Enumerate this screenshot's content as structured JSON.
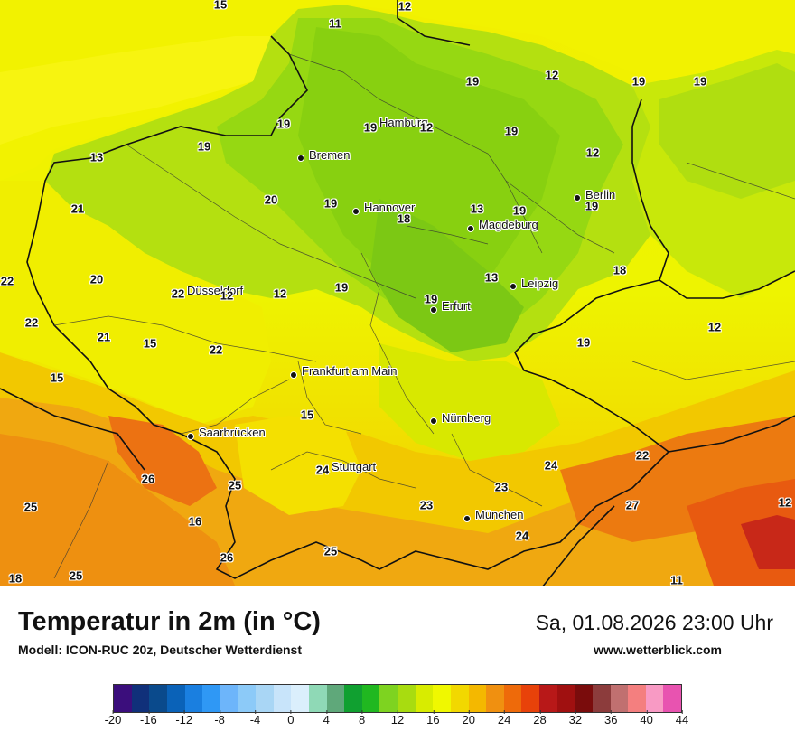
{
  "map": {
    "cities": [
      {
        "name": "Hamburg",
        "id": "hamburg"
      },
      {
        "name": "Bremen",
        "id": "bremen"
      },
      {
        "name": "Hannover",
        "id": "hannover"
      },
      {
        "name": "Berlin",
        "id": "berlin"
      },
      {
        "name": "Magdeburg",
        "id": "magdeburg"
      },
      {
        "name": "Leipzig",
        "id": "leipzig"
      },
      {
        "name": "Düsseldorf",
        "id": "duesseldorf"
      },
      {
        "name": "Erfurt",
        "id": "erfurt"
      },
      {
        "name": "Frankfurt am Main",
        "id": "frankfurt"
      },
      {
        "name": "Nürnberg",
        "id": "nuernberg"
      },
      {
        "name": "Saarbrücken",
        "id": "saarbruecken"
      },
      {
        "name": "Stuttgart",
        "id": "stuttgart"
      },
      {
        "name": "München",
        "id": "muenchen"
      }
    ],
    "temperature_labels": [
      "15",
      "12",
      "11",
      "12",
      "19",
      "12",
      "19",
      "19",
      "19",
      "19",
      "12",
      "13",
      "19",
      "13",
      "12",
      "19",
      "20",
      "19",
      "18",
      "13",
      "19",
      "21",
      "22",
      "20",
      "22",
      "12",
      "12",
      "19",
      "19",
      "18",
      "22",
      "21",
      "15",
      "22",
      "19",
      "12",
      "19",
      "15",
      "15",
      "26",
      "25",
      "16",
      "24",
      "23",
      "24",
      "23",
      "27",
      "22",
      "25",
      "26",
      "25",
      "18",
      "25",
      "24",
      "11"
    ]
  },
  "footer": {
    "title": "Temperatur in 2m (in °C)",
    "model": "Modell: ICON-RUC 20z, Deutscher Wetterdienst",
    "datetime": "Sa, 01.08.2026 23:00 Uhr",
    "website": "www.wetterblick.com"
  },
  "legend": {
    "colors": [
      "#3b0e7c",
      "#10307a",
      "#0a4a8c",
      "#0a62b8",
      "#1a7fe0",
      "#2f98f5",
      "#6db5fa",
      "#8ccaf8",
      "#a9d6f5",
      "#c8e4fa",
      "#dbeffc",
      "#8fd9b6",
      "#5fa87a",
      "#10a030",
      "#20b820",
      "#7ed320",
      "#a8dc10",
      "#d8ec00",
      "#f0f800",
      "#f2d800",
      "#f4b800",
      "#f09010",
      "#ee6a0a",
      "#e8420a",
      "#b81818",
      "#a01010",
      "#7a0c0c",
      "#8c3c3c",
      "#c07070",
      "#f47f7f",
      "#f89ac4",
      "#e853b0"
    ],
    "ticks": [
      "-20",
      "-16",
      "-12",
      "-8",
      "-4",
      "0",
      "4",
      "8",
      "12",
      "16",
      "20",
      "24",
      "28",
      "32",
      "36",
      "40",
      "44"
    ]
  }
}
